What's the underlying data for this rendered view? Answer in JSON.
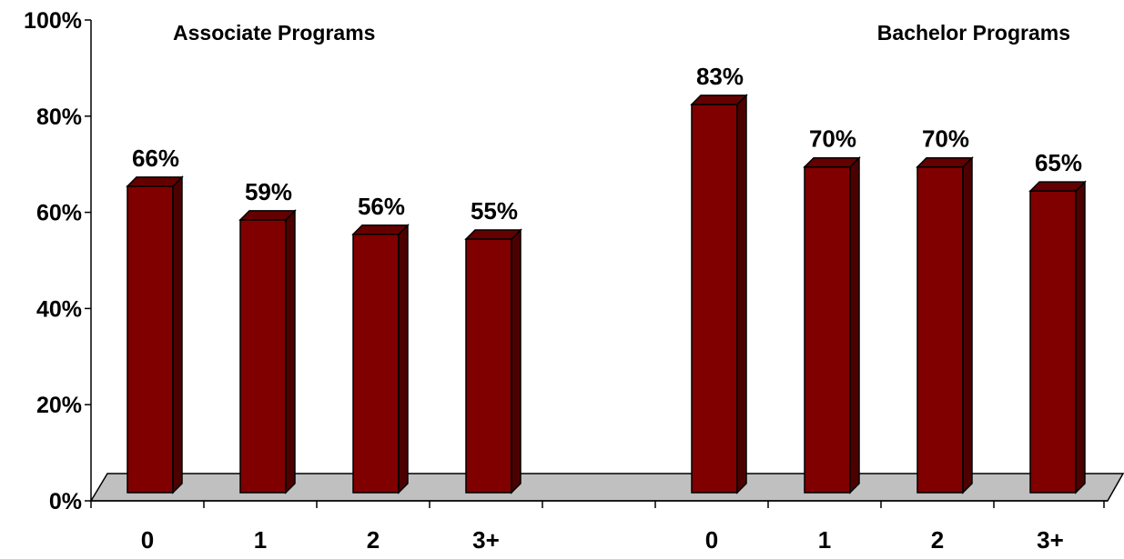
{
  "chart_data": {
    "type": "bar",
    "groups": [
      {
        "title": "Associate Programs",
        "categories": [
          "0",
          "1",
          "2",
          "3+"
        ],
        "values": [
          66,
          59,
          56,
          55
        ],
        "value_labels": [
          "66%",
          "59%",
          "56%",
          "55%"
        ]
      },
      {
        "title": "Bachelor Programs",
        "categories": [
          "0",
          "1",
          "2",
          "3+"
        ],
        "values": [
          83,
          70,
          70,
          65
        ],
        "value_labels": [
          "83%",
          "70%",
          "70%",
          "65%"
        ]
      }
    ],
    "y_ticks": [
      "0%",
      "20%",
      "40%",
      "60%",
      "80%",
      "100%"
    ],
    "ylim": [
      0,
      100
    ],
    "grid": false,
    "legend": "none",
    "style": "3d-column",
    "colors": {
      "bar_front": "#800000",
      "bar_side": "#4d0000",
      "bar_top": "#650000",
      "floor": "#c0c0c0",
      "axis": "#000000"
    }
  }
}
